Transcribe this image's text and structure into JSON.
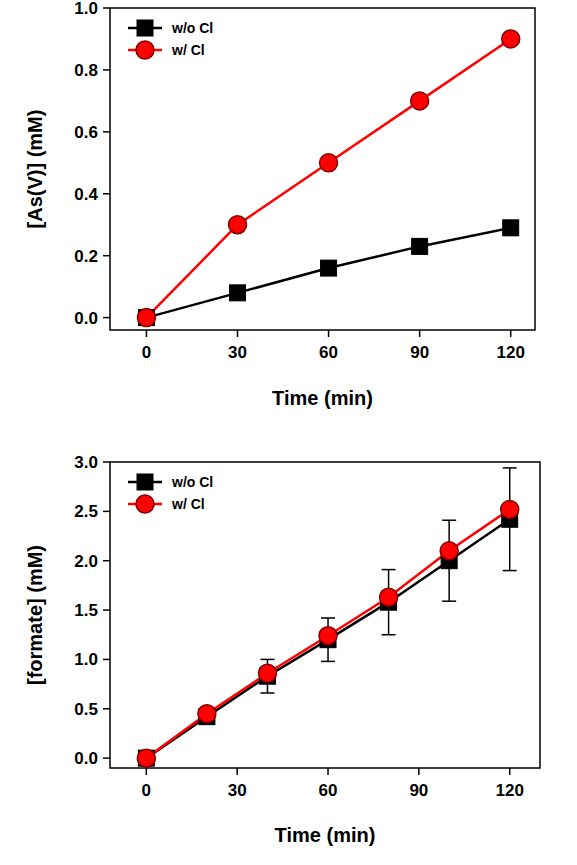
{
  "chart_data": [
    {
      "type": "line",
      "x_label": "Time (min)",
      "y_label": "[As(V)] (mM)",
      "x": [
        0,
        30,
        60,
        90,
        120
      ],
      "series": [
        {
          "name": "w/o Cl",
          "color": "#000000",
          "marker": "square",
          "values": [
            0,
            0.08,
            0.16,
            0.23,
            0.29
          ]
        },
        {
          "name": "w/ Cl",
          "color": "#ff0000",
          "marker": "circle",
          "values": [
            0,
            0.3,
            0.5,
            0.7,
            0.9
          ]
        }
      ],
      "xlim": [
        -12,
        128
      ],
      "xticks": [
        0,
        30,
        60,
        90,
        120
      ],
      "ylim": [
        -0.04,
        1.0
      ],
      "yticks": [
        {
          "value": 0,
          "label": "0.0"
        },
        0.2,
        0.4,
        0.6,
        0.8,
        {
          "value": 1.0,
          "label": "1.0"
        }
      ],
      "legend": "upper-left"
    },
    {
      "type": "line",
      "x_label": "Time (min)",
      "y_label": "[formate] (mM)",
      "x": [
        0,
        20,
        40,
        60,
        80,
        100,
        120
      ],
      "series": [
        {
          "name": "w/o Cl",
          "color": "#000000",
          "marker": "square",
          "values": [
            0,
            0.42,
            0.83,
            1.2,
            1.58,
            2.0,
            2.42
          ],
          "errors": [
            0,
            0.03,
            0.17,
            0.22,
            0.33,
            0.41,
            0.52
          ]
        },
        {
          "name": "w/ Cl",
          "color": "#ff0000",
          "marker": "circle",
          "values": [
            0,
            0.45,
            0.86,
            1.24,
            1.63,
            2.1,
            2.52
          ]
        }
      ],
      "xlim": [
        -12,
        130
      ],
      "xticks": [
        0,
        30,
        60,
        90,
        120
      ],
      "ylim": [
        -0.1,
        3.0
      ],
      "yticks": [
        {
          "value": 0,
          "label": "0.0"
        },
        0.5,
        {
          "value": 1.0,
          "label": "1.0"
        },
        1.5,
        {
          "value": 2.0,
          "label": "2.0"
        },
        2.5,
        {
          "value": 3.0,
          "label": "3.0"
        }
      ],
      "legend": "upper-left"
    }
  ]
}
